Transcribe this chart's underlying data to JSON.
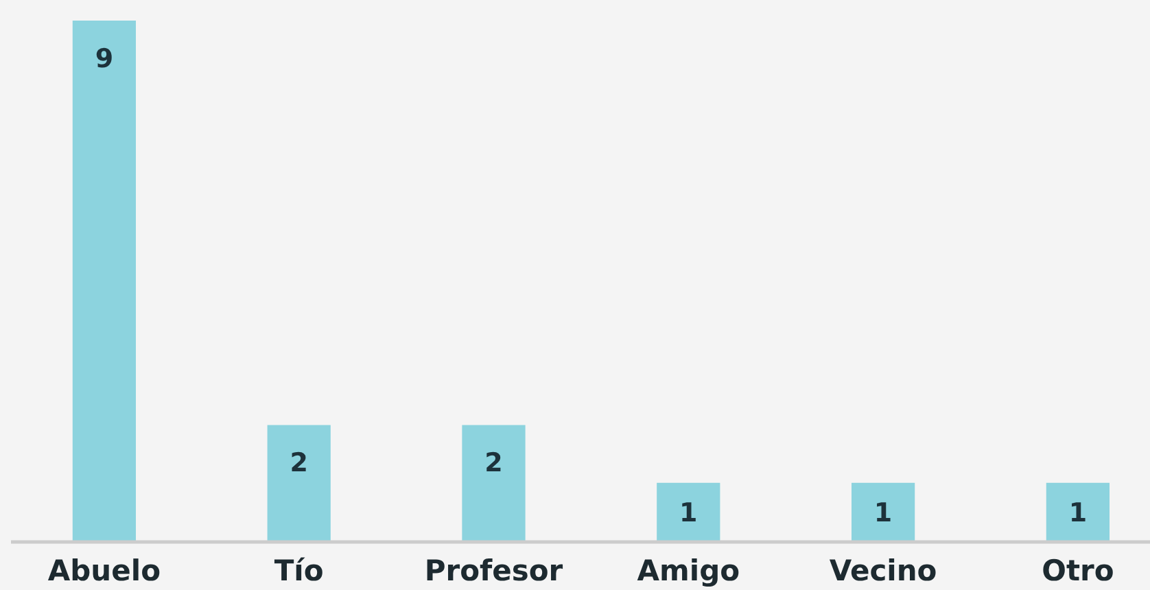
{
  "chart_data": {
    "type": "bar",
    "categories": [
      "Abuelo",
      "Tío",
      "Profesor",
      "Amigo",
      "Vecino",
      "Otro"
    ],
    "values": [
      9,
      2,
      2,
      1,
      1,
      1
    ],
    "color": "#8cd3de",
    "data_labels": true
  }
}
